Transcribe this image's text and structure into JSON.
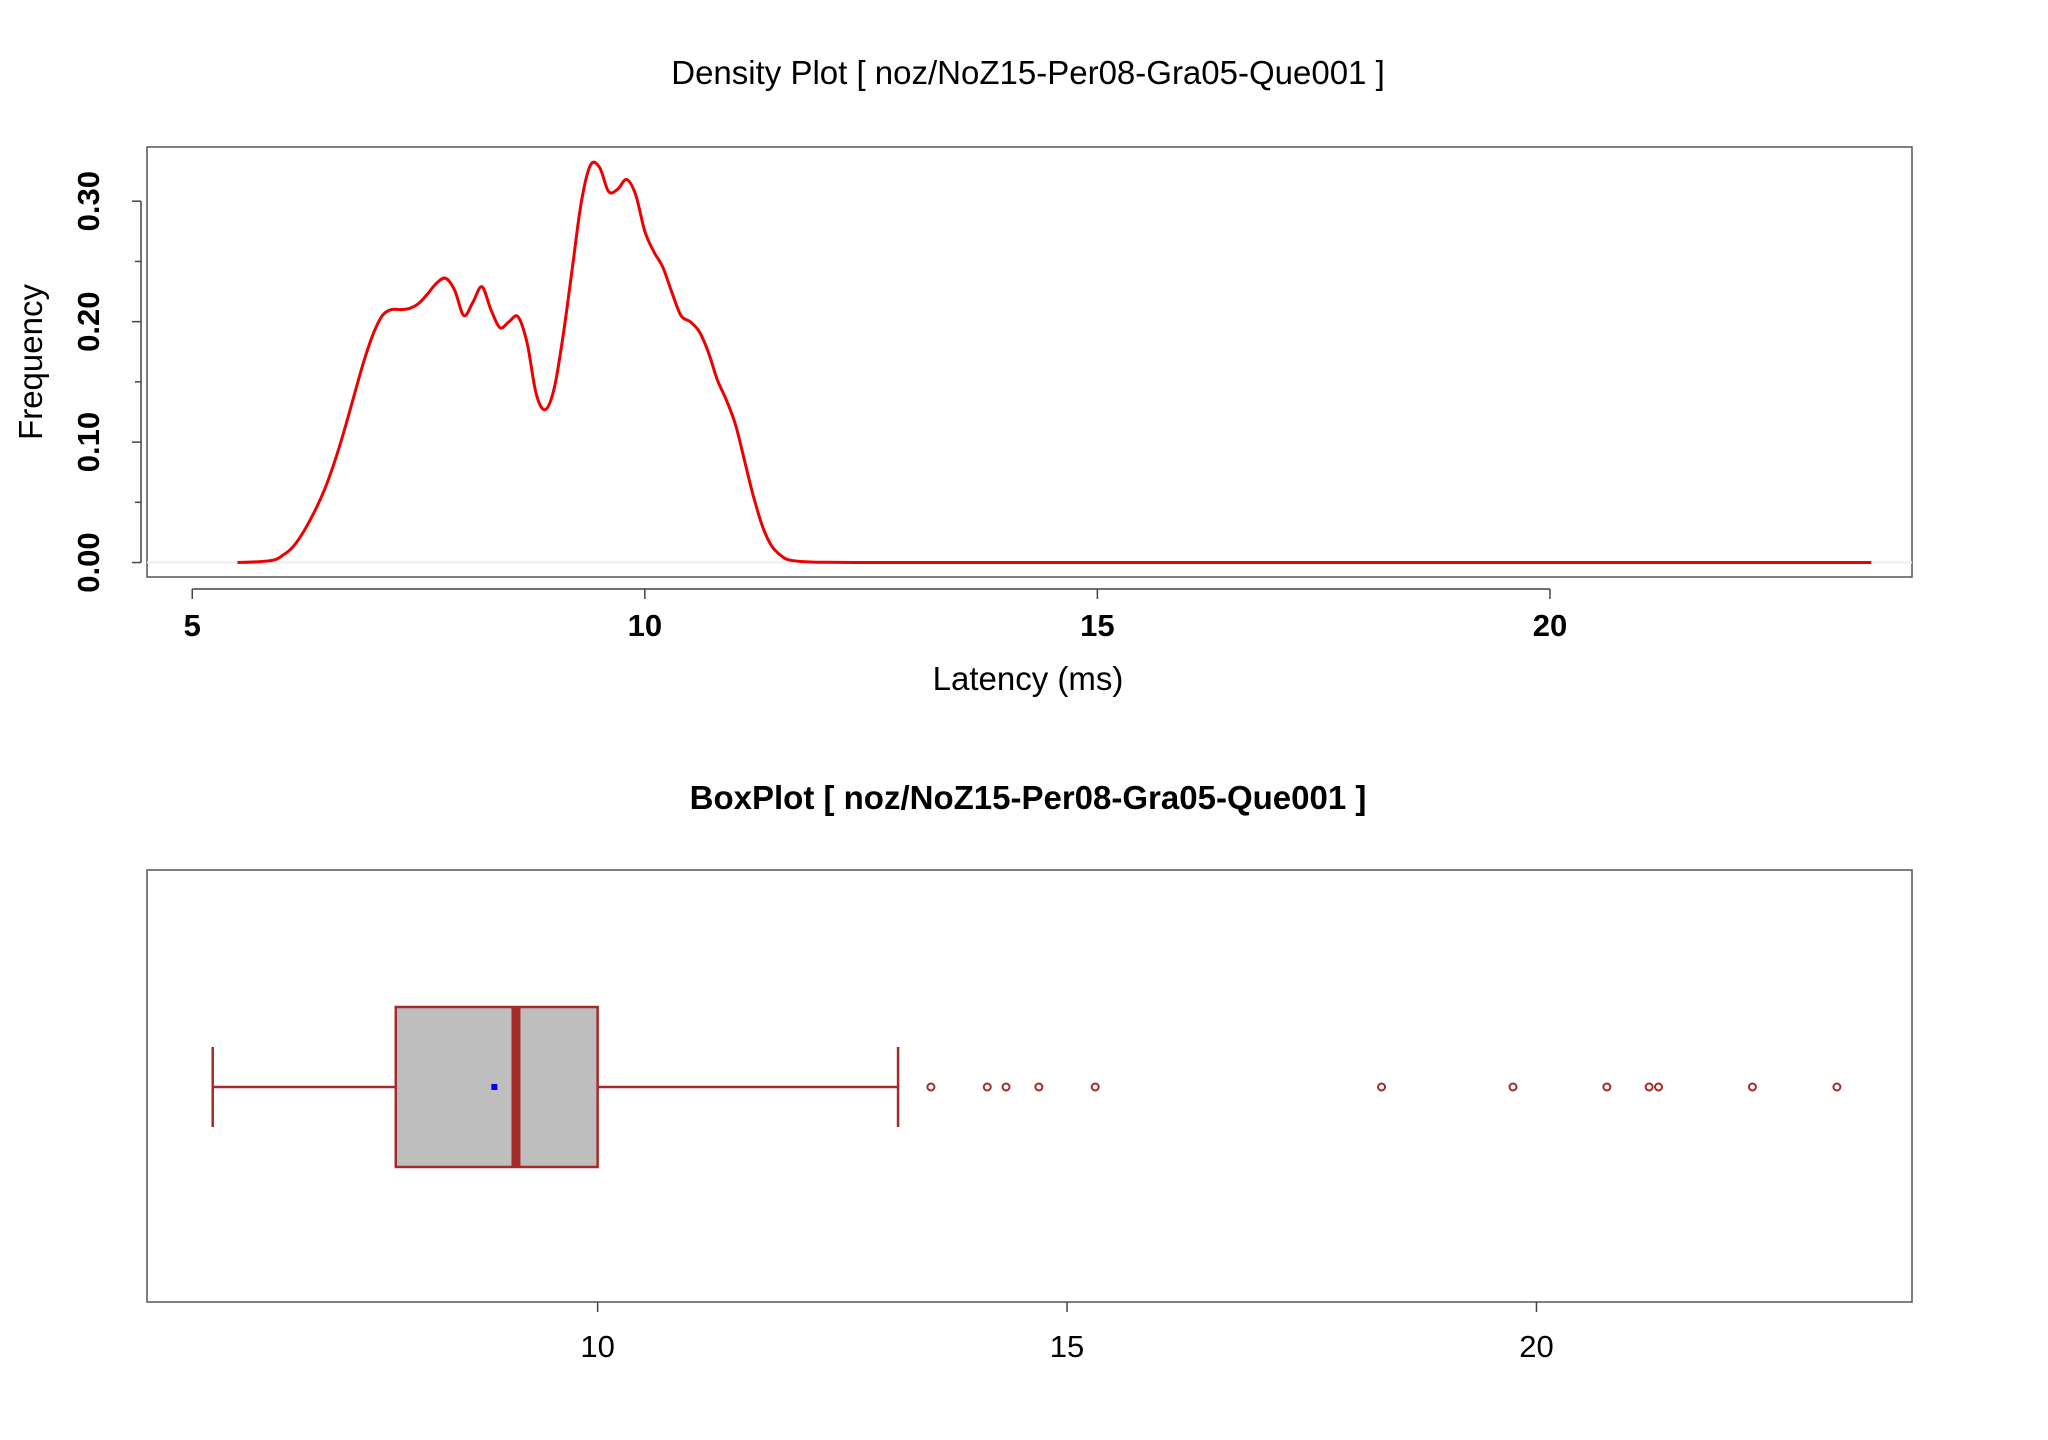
{
  "chart_data": [
    {
      "type": "line",
      "title": "Density Plot [ noz/NoZ15-Per08-Gra05-Que001 ]",
      "xlabel": "Latency (ms)",
      "ylabel": "Frequency",
      "xlim": [
        4.5,
        24.0
      ],
      "ylim": [
        -0.012,
        0.345
      ],
      "x_ticks": [
        5,
        10,
        15,
        20
      ],
      "x_tick_labels": [
        "5",
        "10",
        "15",
        "20"
      ],
      "y_ticks": [
        0.0,
        0.1,
        0.2,
        0.3
      ],
      "y_tick_labels": [
        "0.00",
        "0.10",
        "0.20",
        "0.30"
      ],
      "y_minor_ticks": [
        0.05,
        0.15,
        0.25
      ],
      "grid": false,
      "line_color": "#ee0000",
      "series": [
        {
          "x": [
            5.5,
            5.7,
            5.9,
            6.0,
            6.1,
            6.2,
            6.3,
            6.4,
            6.5,
            6.6,
            6.7,
            6.8,
            6.9,
            7.0,
            7.1,
            7.2,
            7.3,
            7.4,
            7.5,
            7.6,
            7.7,
            7.8,
            7.9,
            8.0,
            8.1,
            8.2,
            8.3,
            8.4,
            8.5,
            8.6,
            8.7,
            8.8,
            8.9,
            9.0,
            9.1,
            9.2,
            9.3,
            9.4,
            9.5,
            9.6,
            9.7,
            9.8,
            9.9,
            10.0,
            10.1,
            10.2,
            10.3,
            10.4,
            10.5,
            10.6,
            10.7,
            10.8,
            10.9,
            11.0,
            11.1,
            11.2,
            11.3,
            11.4,
            11.5,
            11.6,
            11.8,
            12.0,
            12.5,
            13.0,
            14.0,
            16.0,
            18.0,
            20.0,
            22.0,
            23.55
          ],
          "y": [
            0.0,
            0.0005,
            0.002,
            0.006,
            0.012,
            0.022,
            0.035,
            0.05,
            0.068,
            0.09,
            0.115,
            0.142,
            0.168,
            0.19,
            0.205,
            0.21,
            0.21,
            0.211,
            0.215,
            0.223,
            0.232,
            0.236,
            0.226,
            0.205,
            0.216,
            0.229,
            0.21,
            0.195,
            0.2,
            0.204,
            0.182,
            0.14,
            0.127,
            0.145,
            0.19,
            0.245,
            0.3,
            0.33,
            0.328,
            0.308,
            0.31,
            0.318,
            0.305,
            0.275,
            0.258,
            0.245,
            0.224,
            0.205,
            0.2,
            0.192,
            0.175,
            0.152,
            0.135,
            0.115,
            0.085,
            0.055,
            0.03,
            0.014,
            0.006,
            0.002,
            0.0005,
            0.0002,
            0.0,
            0.0,
            0.0,
            0.0,
            0.0,
            0.0,
            0.0,
            0.0
          ]
        }
      ]
    },
    {
      "type": "box",
      "title": "BoxPlot [ noz/NoZ15-Per08-Gra05-Que001 ]",
      "xlim": [
        5.2,
        24.0
      ],
      "x_ticks": [
        10,
        15,
        20
      ],
      "x_tick_labels": [
        "10",
        "15",
        "20"
      ],
      "grid": false,
      "box_fill": "#bebebe",
      "box_color": "#a52a2a",
      "mean_color": "#0000ff",
      "whisker_low": 5.9,
      "q1": 7.85,
      "median": 9.13,
      "q3": 10.0,
      "whisker_high": 13.2,
      "mean": 8.9,
      "outliers": [
        13.55,
        14.15,
        14.35,
        14.7,
        15.3,
        18.35,
        19.75,
        20.75,
        21.2,
        21.3,
        22.3,
        23.2
      ]
    }
  ]
}
